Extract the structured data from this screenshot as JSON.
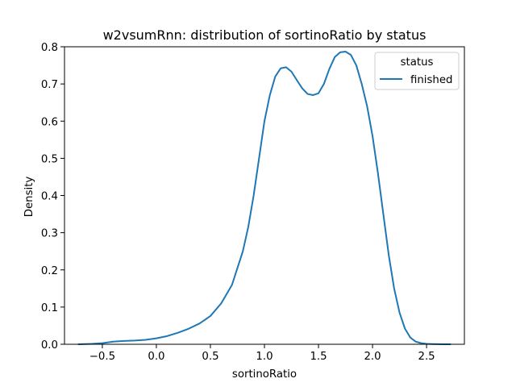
{
  "chart_data": {
    "type": "line",
    "title": "w2vsumRnn: distribution of sortinoRatio by status",
    "xlabel": "sortinoRatio",
    "ylabel": "Density",
    "xlim": [
      -0.85,
      2.85
    ],
    "ylim": [
      0.0,
      0.8
    ],
    "xticks": [
      -0.5,
      0.0,
      0.5,
      1.0,
      1.5,
      2.0,
      2.5
    ],
    "xtick_labels": [
      "−0.5",
      "0.0",
      "0.5",
      "1.0",
      "1.5",
      "2.0",
      "2.5"
    ],
    "yticks": [
      0.0,
      0.1,
      0.2,
      0.3,
      0.4,
      0.5,
      0.6,
      0.7,
      0.8
    ],
    "ytick_labels": [
      "0.0",
      "0.1",
      "0.2",
      "0.3",
      "0.4",
      "0.5",
      "0.6",
      "0.7",
      "0.8"
    ],
    "grid": false,
    "legend": {
      "title": "status",
      "placement": "top-right"
    },
    "series": [
      {
        "name": "finished",
        "color": "#1f77b4",
        "x": [
          -0.72,
          -0.6,
          -0.5,
          -0.4,
          -0.3,
          -0.2,
          -0.1,
          0.0,
          0.1,
          0.2,
          0.3,
          0.4,
          0.5,
          0.6,
          0.7,
          0.8,
          0.85,
          0.9,
          0.95,
          1.0,
          1.05,
          1.1,
          1.15,
          1.2,
          1.25,
          1.3,
          1.35,
          1.4,
          1.45,
          1.5,
          1.55,
          1.6,
          1.65,
          1.7,
          1.75,
          1.8,
          1.85,
          1.9,
          1.95,
          2.0,
          2.05,
          2.1,
          2.15,
          2.2,
          2.25,
          2.3,
          2.35,
          2.4,
          2.45,
          2.5,
          2.55,
          2.6,
          2.65,
          2.72
        ],
        "y": [
          0.0,
          0.001,
          0.003,
          0.007,
          0.009,
          0.01,
          0.012,
          0.016,
          0.022,
          0.031,
          0.042,
          0.056,
          0.076,
          0.11,
          0.16,
          0.25,
          0.315,
          0.4,
          0.5,
          0.6,
          0.67,
          0.72,
          0.742,
          0.745,
          0.733,
          0.71,
          0.688,
          0.673,
          0.67,
          0.675,
          0.7,
          0.74,
          0.772,
          0.785,
          0.787,
          0.778,
          0.75,
          0.7,
          0.64,
          0.56,
          0.46,
          0.35,
          0.24,
          0.15,
          0.085,
          0.042,
          0.018,
          0.007,
          0.003,
          0.001,
          0.0005,
          0.0002,
          0.0001,
          0.0
        ]
      }
    ]
  }
}
